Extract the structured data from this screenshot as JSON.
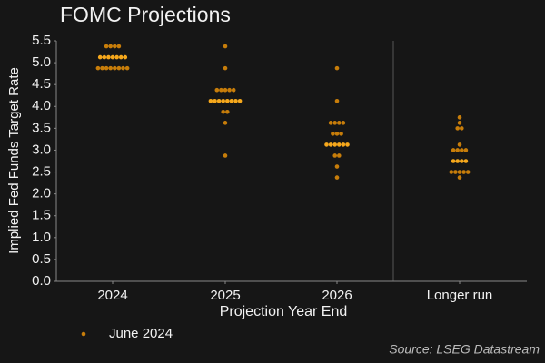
{
  "chart_data": {
    "type": "dot",
    "title": "FOMC Projections",
    "xlabel": "Projection Year End",
    "ylabel": "Implied Fed Funds Target Rate",
    "source": "Source: LSEG Datastream",
    "categories": [
      "2024",
      "2025",
      "2026",
      "Longer run"
    ],
    "series": [
      {
        "name": "June 2024",
        "color": "#c77d0a",
        "median_color": "#f6a81c",
        "values": [
          [
            5.375,
            5.375,
            5.375,
            5.375,
            5.125,
            5.125,
            5.125,
            5.125,
            5.125,
            5.125,
            5.125,
            4.875,
            4.875,
            4.875,
            4.875,
            4.875,
            4.875,
            4.875,
            4.875
          ],
          [
            5.375,
            4.875,
            4.375,
            4.375,
            4.375,
            4.375,
            4.375,
            4.125,
            4.125,
            4.125,
            4.125,
            4.125,
            4.125,
            4.125,
            4.125,
            3.875,
            3.875,
            3.625,
            2.875
          ],
          [
            4.875,
            4.125,
            3.625,
            3.625,
            3.625,
            3.625,
            3.375,
            3.375,
            3.375,
            3.125,
            3.125,
            3.125,
            3.125,
            3.125,
            3.125,
            2.875,
            2.875,
            2.625,
            2.375
          ],
          [
            3.75,
            3.625,
            3.5,
            3.5,
            3.125,
            3.0,
            3.0,
            3.0,
            3.0,
            2.75,
            2.75,
            2.75,
            2.75,
            2.5,
            2.5,
            2.5,
            2.5,
            2.5,
            2.375
          ]
        ]
      }
    ],
    "ylim": [
      0,
      5.5
    ],
    "yticks": [
      {
        "value": 0,
        "label": "0.0"
      },
      {
        "value": 0.5,
        "label": "0.5"
      },
      {
        "value": 1,
        "label": "1.0"
      },
      {
        "value": 1.5,
        "label": "1.5"
      },
      {
        "value": 2,
        "label": "2.0"
      },
      {
        "value": 2.5,
        "label": "2.5"
      },
      {
        "value": 3,
        "label": "3.0"
      },
      {
        "value": 3.5,
        "label": "3.5"
      },
      {
        "value": 4,
        "label": "4.0"
      },
      {
        "value": 4.5,
        "label": "4.5"
      },
      {
        "value": 5,
        "label": "5.0"
      },
      {
        "value": 5.5,
        "label": "5.5"
      }
    ]
  }
}
